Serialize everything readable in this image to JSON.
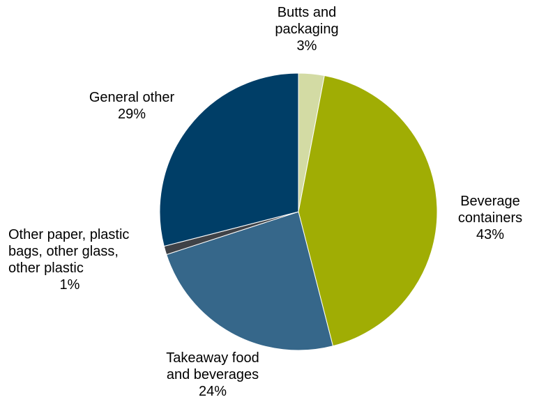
{
  "chart_data": {
    "type": "pie",
    "title": "",
    "start_angle_deg": 0,
    "direction": "clockwise",
    "slices": [
      {
        "label_lines": [
          "Butts and",
          "packaging"
        ],
        "percent_label": "3%",
        "value": 3,
        "color": "#d3dba4"
      },
      {
        "label_lines": [
          "Beverage",
          "containers"
        ],
        "percent_label": "43%",
        "value": 43,
        "color": "#a0ad04"
      },
      {
        "label_lines": [
          "Takeaway food",
          "and beverages"
        ],
        "percent_label": "24%",
        "value": 24,
        "color": "#36678a"
      },
      {
        "label_lines": [
          "Other paper, plastic",
          "bags, other glass,",
          "other plastic"
        ],
        "percent_label": "1%",
        "value": 1,
        "color": "#3f4247"
      },
      {
        "label_lines": [
          "General other"
        ],
        "percent_label": "29%",
        "value": 29,
        "color": "#003e67"
      }
    ],
    "legend": "none"
  }
}
